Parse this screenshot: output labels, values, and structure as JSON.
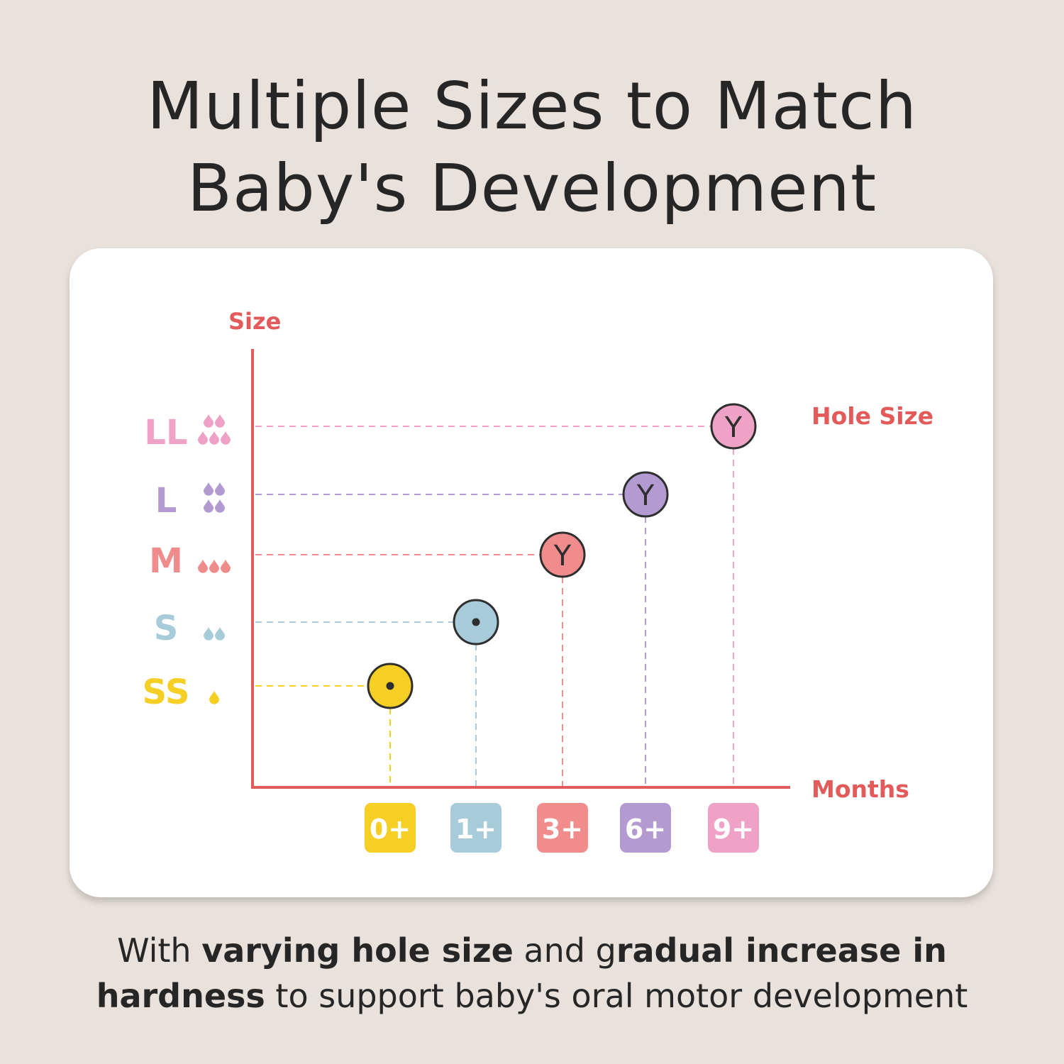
{
  "header": {
    "title_line1": "Multiple Sizes to Match",
    "title_line2": "Baby's Development"
  },
  "footer": {
    "line1": [
      {
        "text": "With ",
        "bold": false
      },
      {
        "text": "varying hole size",
        "bold": true
      },
      {
        "text": " and g",
        "bold": false
      },
      {
        "text": "radual increase in",
        "bold": true
      }
    ],
    "line2": [
      {
        "text": "hardness",
        "bold": true
      },
      {
        "text": " to support baby's oral motor development",
        "bold": false
      }
    ]
  },
  "chart_data": {
    "type": "scatter",
    "ylabel": "Size",
    "xlabel": "Months",
    "point_label": "Hole Size",
    "y_categories": [
      {
        "label": "SS",
        "color": "#f6cf24",
        "drops": 1
      },
      {
        "label": "S",
        "color": "#a8cbd9",
        "drops": 2
      },
      {
        "label": "M",
        "color": "#f08c8c",
        "drops": 3
      },
      {
        "label": "L",
        "color": "#b39bd2",
        "drops": 4
      },
      {
        "label": "LL",
        "color": "#eea3c6",
        "drops": 5
      }
    ],
    "x_categories": [
      {
        "label": "0+",
        "color": "#f6cf24"
      },
      {
        "label": "1+",
        "color": "#a8cbd9"
      },
      {
        "label": "3+",
        "color": "#f08c8c"
      },
      {
        "label": "6+",
        "color": "#b39bd2"
      },
      {
        "label": "9+",
        "color": "#eea3c6"
      }
    ],
    "points": [
      {
        "x": "0+",
        "y": "SS",
        "hole": "dot",
        "glyph": "",
        "color": "#f6cf24"
      },
      {
        "x": "1+",
        "y": "S",
        "hole": "dot",
        "glyph": "",
        "color": "#a8cbd9"
      },
      {
        "x": "3+",
        "y": "M",
        "hole": "y-cut",
        "glyph": "Y",
        "color": "#f08c8c"
      },
      {
        "x": "6+",
        "y": "L",
        "hole": "y-cut",
        "glyph": "Y",
        "color": "#b39bd2"
      },
      {
        "x": "9+",
        "y": "LL",
        "hole": "y-cut",
        "glyph": "Y",
        "color": "#eea3c6"
      }
    ],
    "axis_color": "#e35a5a",
    "label_color": "#e35a5a",
    "grid": false
  }
}
